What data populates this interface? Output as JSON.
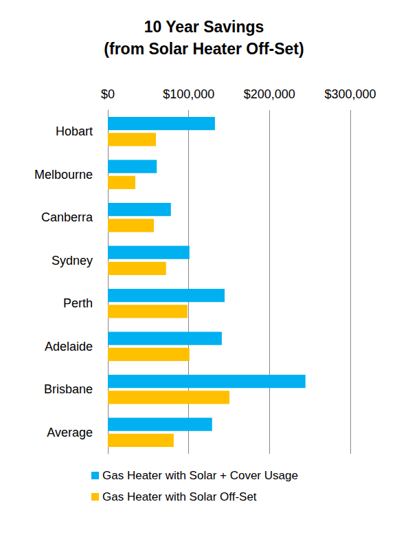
{
  "chart_data": {
    "type": "bar",
    "orientation": "horizontal",
    "title": "10 Year Savings\n(from Solar Heater Off-Set)",
    "categories": [
      "Hobart",
      "Melbourne",
      "Canberra",
      "Sydney",
      "Perth",
      "Adelaide",
      "Brisbane",
      "Average"
    ],
    "series": [
      {
        "name": "Gas Heater with Solar + Cover Usage",
        "color": "#00B0F0",
        "values": [
          132500,
          60500,
          78000,
          101000,
          144500,
          141000,
          244500,
          129000
        ]
      },
      {
        "name": "Gas Heater with Solar Off-Set",
        "color": "#FFC000",
        "values": [
          59500,
          34000,
          57000,
          72000,
          98500,
          101000,
          150500,
          81500
        ]
      }
    ],
    "xlim": [
      0,
      300000
    ],
    "xticks": [
      {
        "value": 0,
        "label": "$0"
      },
      {
        "value": 100000,
        "label": "$100,000"
      },
      {
        "value": 200000,
        "label": "$200,000"
      },
      {
        "value": 300000,
        "label": "$300,000"
      }
    ],
    "grid": true,
    "legend": "bottom"
  }
}
